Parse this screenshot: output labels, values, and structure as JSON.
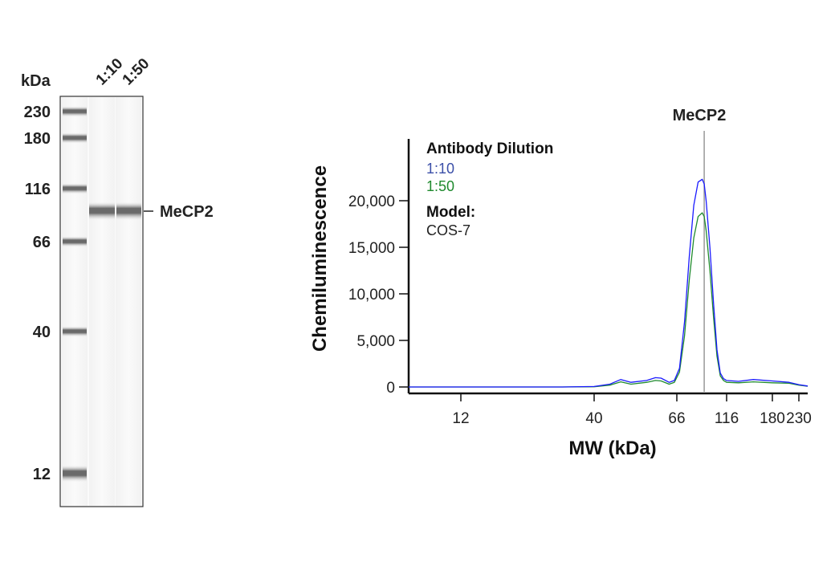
{
  "blot": {
    "unit_label": "kDa",
    "lanes": [
      "1:10",
      "1:50"
    ],
    "markers": [
      "230",
      "180",
      "116",
      "66",
      "40",
      "12"
    ],
    "band_label": "MeCP2"
  },
  "chart_data": {
    "type": "line",
    "xlabel": "MW (kDa)",
    "ylabel": "Chemiluminescence",
    "x_ticks": [
      12,
      40,
      66,
      116,
      180,
      230
    ],
    "x_tick_labels": [
      "12",
      "40",
      "66",
      "116",
      "180",
      "230"
    ],
    "y_ticks": [
      0,
      5000,
      10000,
      15000,
      20000
    ],
    "y_tick_labels": [
      "0",
      "5,000",
      "10,000",
      "15,000",
      "20,000"
    ],
    "xlim": [
      7.5,
      250
    ],
    "ylim": [
      0,
      26600
    ],
    "grid": false,
    "marker_line": {
      "x": 90,
      "label": "MeCP2"
    },
    "legend": {
      "title": "Antibody Dilution",
      "model_title": "Model:",
      "model": "COS-7",
      "placement": "top-left"
    },
    "series": [
      {
        "name": "1:10",
        "color": "#1a1aff",
        "label_color": "#3b4fa8",
        "x": [
          7.5,
          30,
          40,
          44,
          47,
          50,
          55,
          58,
          60,
          63,
          65,
          68,
          72,
          76,
          80,
          84,
          88,
          90,
          92,
          96,
          100,
          104,
          108,
          112,
          116,
          130,
          150,
          180,
          210,
          230,
          250
        ],
        "y": [
          0,
          0,
          50,
          300,
          800,
          500,
          700,
          1000,
          950,
          500,
          700,
          2000,
          7000,
          14000,
          19500,
          22000,
          22300,
          21800,
          20000,
          15000,
          9000,
          4000,
          1500,
          900,
          700,
          600,
          800,
          650,
          500,
          250,
          100
        ]
      },
      {
        "name": "1:50",
        "color": "#1f8a2e",
        "label_color": "#1f8a2e",
        "x": [
          7.5,
          30,
          40,
          44,
          47,
          50,
          55,
          58,
          60,
          63,
          65,
          68,
          72,
          76,
          80,
          84,
          88,
          90,
          92,
          96,
          100,
          104,
          108,
          112,
          116,
          130,
          150,
          180,
          210,
          230,
          250
        ],
        "y": [
          0,
          0,
          30,
          200,
          550,
          300,
          500,
          700,
          650,
          300,
          500,
          1600,
          5500,
          11500,
          16000,
          18300,
          18700,
          18300,
          16800,
          12500,
          7500,
          3300,
          1200,
          700,
          500,
          450,
          550,
          450,
          400,
          200,
          80
        ]
      }
    ]
  }
}
